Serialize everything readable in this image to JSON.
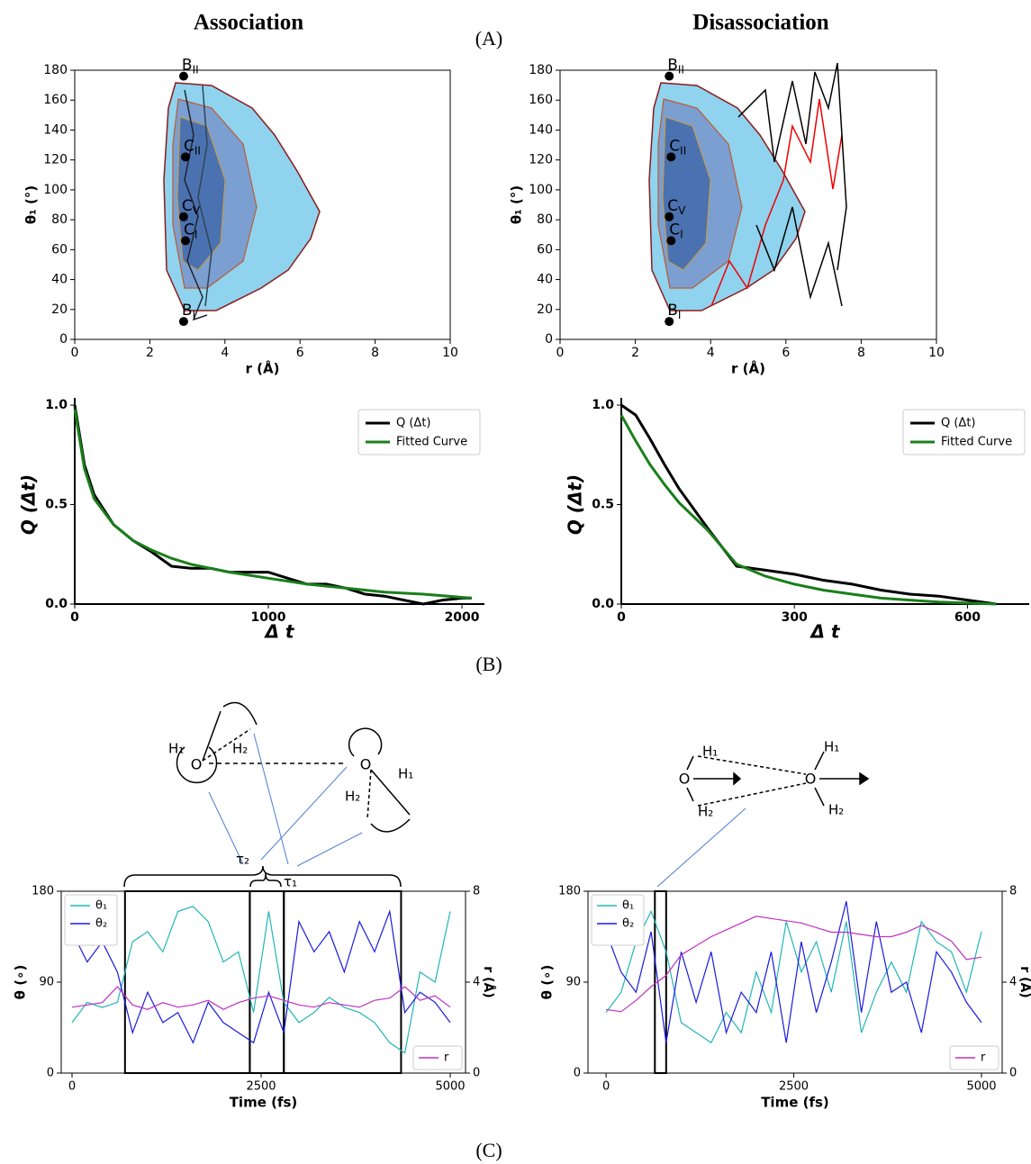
{
  "headings": {
    "left": "Association",
    "right": "Disassociation"
  },
  "panel_labels": [
    "(A)",
    "(B)",
    "(C)"
  ],
  "diagrams": {
    "left": {
      "labels": [
        "H₁",
        "H₂",
        "O",
        "O",
        "H₁",
        "H₂",
        "τ₂",
        "τ₁"
      ]
    },
    "right": {
      "labels": [
        "H₁",
        "H₂",
        "O",
        "O",
        "H₁",
        "H₂"
      ]
    }
  },
  "chart_data": [
    {
      "type": "scatter",
      "xlabel": "r (Å)",
      "ylabel": "θ₁ (°)",
      "xlim": [
        0,
        10
      ],
      "ylim": [
        0,
        180
      ],
      "xticks": [
        0,
        2,
        4,
        6,
        8,
        10
      ],
      "yticks": [
        0,
        20,
        40,
        60,
        80,
        100,
        120,
        140,
        160,
        180
      ],
      "color": "#000000",
      "points": [
        {
          "name": "B",
          "sub": "II",
          "x": 2.9,
          "y": 176
        },
        {
          "name": "C",
          "sub": "II",
          "x": 2.95,
          "y": 122
        },
        {
          "name": "C",
          "sub": "V",
          "x": 2.9,
          "y": 82
        },
        {
          "name": "C",
          "sub": "I",
          "x": 2.95,
          "y": 66
        },
        {
          "name": "B",
          "sub": "I",
          "x": 2.9,
          "y": 12
        }
      ]
    },
    {
      "type": "scatter",
      "xlabel": "r (Å)",
      "ylabel": "θ₁ (°)",
      "xlim": [
        0,
        10
      ],
      "ylim": [
        0,
        180
      ],
      "xticks": [
        0,
        2,
        4,
        6,
        8,
        10
      ],
      "yticks": [
        0,
        20,
        40,
        60,
        80,
        100,
        120,
        140,
        160,
        180
      ],
      "color": "#000000",
      "points": [
        {
          "name": "B",
          "sub": "II",
          "x": 2.9,
          "y": 176
        },
        {
          "name": "C",
          "sub": "II",
          "x": 2.95,
          "y": 122
        },
        {
          "name": "C",
          "sub": "V",
          "x": 2.9,
          "y": 82
        },
        {
          "name": "C",
          "sub": "I",
          "x": 2.95,
          "y": 66
        },
        {
          "name": "B",
          "sub": "I",
          "x": 2.9,
          "y": 12
        }
      ]
    },
    {
      "type": "line",
      "xlabel": "Δ t",
      "ylabel": "Q (Δt)",
      "xlim": [
        0,
        2116
      ],
      "ylim": [
        0,
        1
      ],
      "xticks": [
        0,
        1000,
        2000
      ],
      "yticks": [
        {
          "value": 0,
          "label": "0.0"
        },
        0.5,
        {
          "value": 1,
          "label": "1.0"
        }
      ],
      "series": [
        {
          "name": "Q (Δt)",
          "color": "#000000",
          "x": [
            0,
            50,
            100,
            200,
            300,
            400,
            500,
            600,
            700,
            800,
            900,
            1000,
            1100,
            1200,
            1300,
            1400,
            1500,
            1600,
            1700,
            1800,
            1900,
            2000,
            2050
          ],
          "values": [
            1.0,
            0.7,
            0.55,
            0.4,
            0.32,
            0.26,
            0.19,
            0.18,
            0.18,
            0.16,
            0.16,
            0.16,
            0.13,
            0.1,
            0.1,
            0.08,
            0.05,
            0.04,
            0.02,
            0.0,
            0.02,
            0.03,
            0.03
          ]
        },
        {
          "name": "Fitted Curve",
          "color": "#1a7f1a",
          "x": [
            0,
            50,
            100,
            200,
            300,
            400,
            500,
            600,
            700,
            800,
            1000,
            1200,
            1400,
            1600,
            1800,
            2050
          ],
          "values": [
            0.98,
            0.68,
            0.53,
            0.4,
            0.32,
            0.27,
            0.23,
            0.2,
            0.18,
            0.16,
            0.13,
            0.1,
            0.08,
            0.06,
            0.05,
            0.03
          ]
        }
      ]
    },
    {
      "type": "line",
      "xlabel": "Δ t",
      "ylabel": "Q (Δt)",
      "xlim": [
        0,
        707
      ],
      "ylim": [
        0,
        1
      ],
      "xticks": [
        0,
        300,
        600
      ],
      "yticks": [
        {
          "value": 0,
          "label": "0.0"
        },
        0.5,
        {
          "value": 1,
          "label": "1.0"
        }
      ],
      "series": [
        {
          "name": "Q (Δt)",
          "color": "#000000",
          "x": [
            0,
            25,
            50,
            75,
            100,
            150,
            200,
            250,
            300,
            350,
            400,
            450,
            500,
            550,
            600,
            650
          ],
          "values": [
            1.0,
            0.95,
            0.83,
            0.7,
            0.58,
            0.38,
            0.19,
            0.17,
            0.15,
            0.12,
            0.1,
            0.07,
            0.05,
            0.04,
            0.02,
            0.0
          ]
        },
        {
          "name": "Fitted Curve",
          "color": "#1a7f1a",
          "x": [
            0,
            25,
            50,
            75,
            100,
            150,
            200,
            250,
            300,
            350,
            400,
            450,
            500,
            550,
            650
          ],
          "values": [
            0.95,
            0.82,
            0.7,
            0.6,
            0.51,
            0.37,
            0.2,
            0.14,
            0.1,
            0.07,
            0.05,
            0.03,
            0.02,
            0.01,
            0.0
          ]
        }
      ]
    },
    {
      "type": "line",
      "xlabel": "Time (fs)",
      "ylabel": "θ (∘)",
      "y2label": "r (Å)",
      "xlim": [
        -143,
        5202
      ],
      "ylim": [
        0,
        180
      ],
      "y2lim": [
        0,
        8
      ],
      "xticks": [
        0,
        2500,
        5000
      ],
      "yticks": [
        0,
        90,
        180
      ],
      "y2ticks": [
        0,
        4,
        8
      ],
      "spans": [
        [
          700,
          2350
        ],
        [
          2350,
          2800
        ],
        [
          2800,
          4350
        ]
      ],
      "x": [
        0,
        200,
        400,
        600,
        800,
        1000,
        1200,
        1400,
        1600,
        1800,
        2000,
        2200,
        2400,
        2600,
        2800,
        3000,
        3200,
        3400,
        3600,
        3800,
        4000,
        4200,
        4400,
        4600,
        4800,
        5000
      ],
      "series": [
        {
          "name": "θ₁",
          "color": "#22b5b5",
          "values": [
            50,
            70,
            65,
            70,
            130,
            140,
            120,
            160,
            165,
            150,
            110,
            120,
            60,
            160,
            70,
            50,
            60,
            75,
            65,
            60,
            50,
            30,
            20,
            100,
            90,
            160
          ]
        },
        {
          "name": "θ₂",
          "color": "#1a1ae0",
          "values": [
            140,
            110,
            130,
            100,
            40,
            80,
            50,
            60,
            30,
            70,
            50,
            40,
            30,
            80,
            40,
            150,
            120,
            140,
            100,
            150,
            120,
            160,
            60,
            80,
            70,
            50
          ]
        },
        {
          "name": "r",
          "color": "#c030c0",
          "axis": "y2",
          "values": [
            2.9,
            3.0,
            3.1,
            3.8,
            3.0,
            2.8,
            3.1,
            2.9,
            3.0,
            3.2,
            2.8,
            3.1,
            3.3,
            3.4,
            3.2,
            3.0,
            2.9,
            3.1,
            3.0,
            2.9,
            3.2,
            3.3,
            3.8,
            3.2,
            3.4,
            2.9
          ]
        }
      ]
    },
    {
      "type": "line",
      "xlabel": "Time (fs)",
      "ylabel": "θ (∘)",
      "y2label": "r (Å)",
      "xlim": [
        -241,
        5276
      ],
      "ylim": [
        0,
        180
      ],
      "y2lim": [
        0,
        8
      ],
      "xticks": [
        0,
        2500,
        5000
      ],
      "yticks": [
        0,
        90,
        180
      ],
      "y2ticks": [
        0,
        4,
        8
      ],
      "spans": [
        [
          650,
          800
        ]
      ],
      "x": [
        0,
        200,
        400,
        600,
        800,
        1000,
        1200,
        1400,
        1600,
        1800,
        2000,
        2200,
        2400,
        2600,
        2800,
        3000,
        3200,
        3400,
        3600,
        3800,
        4000,
        4200,
        4400,
        4600,
        4800,
        5000
      ],
      "series": [
        {
          "name": "θ₁",
          "color": "#22b5b5",
          "values": [
            60,
            80,
            130,
            160,
            120,
            50,
            40,
            30,
            60,
            40,
            100,
            60,
            150,
            100,
            130,
            80,
            150,
            40,
            80,
            110,
            80,
            150,
            130,
            120,
            80,
            140
          ]
        },
        {
          "name": "θ₂",
          "color": "#1a1ae0",
          "values": [
            140,
            100,
            80,
            140,
            30,
            120,
            70,
            120,
            40,
            80,
            60,
            120,
            30,
            130,
            60,
            110,
            170,
            60,
            150,
            80,
            90,
            40,
            120,
            100,
            70,
            50
          ]
        },
        {
          "name": "r",
          "color": "#c030c0",
          "axis": "y2",
          "values": [
            2.8,
            2.7,
            3.2,
            3.8,
            4.3,
            5.2,
            5.6,
            6.0,
            6.3,
            6.6,
            6.9,
            6.8,
            6.7,
            6.6,
            6.4,
            6.2,
            6.2,
            6.1,
            6.0,
            6.0,
            6.2,
            6.5,
            6.2,
            5.8,
            5.0,
            5.1
          ]
        }
      ]
    }
  ]
}
